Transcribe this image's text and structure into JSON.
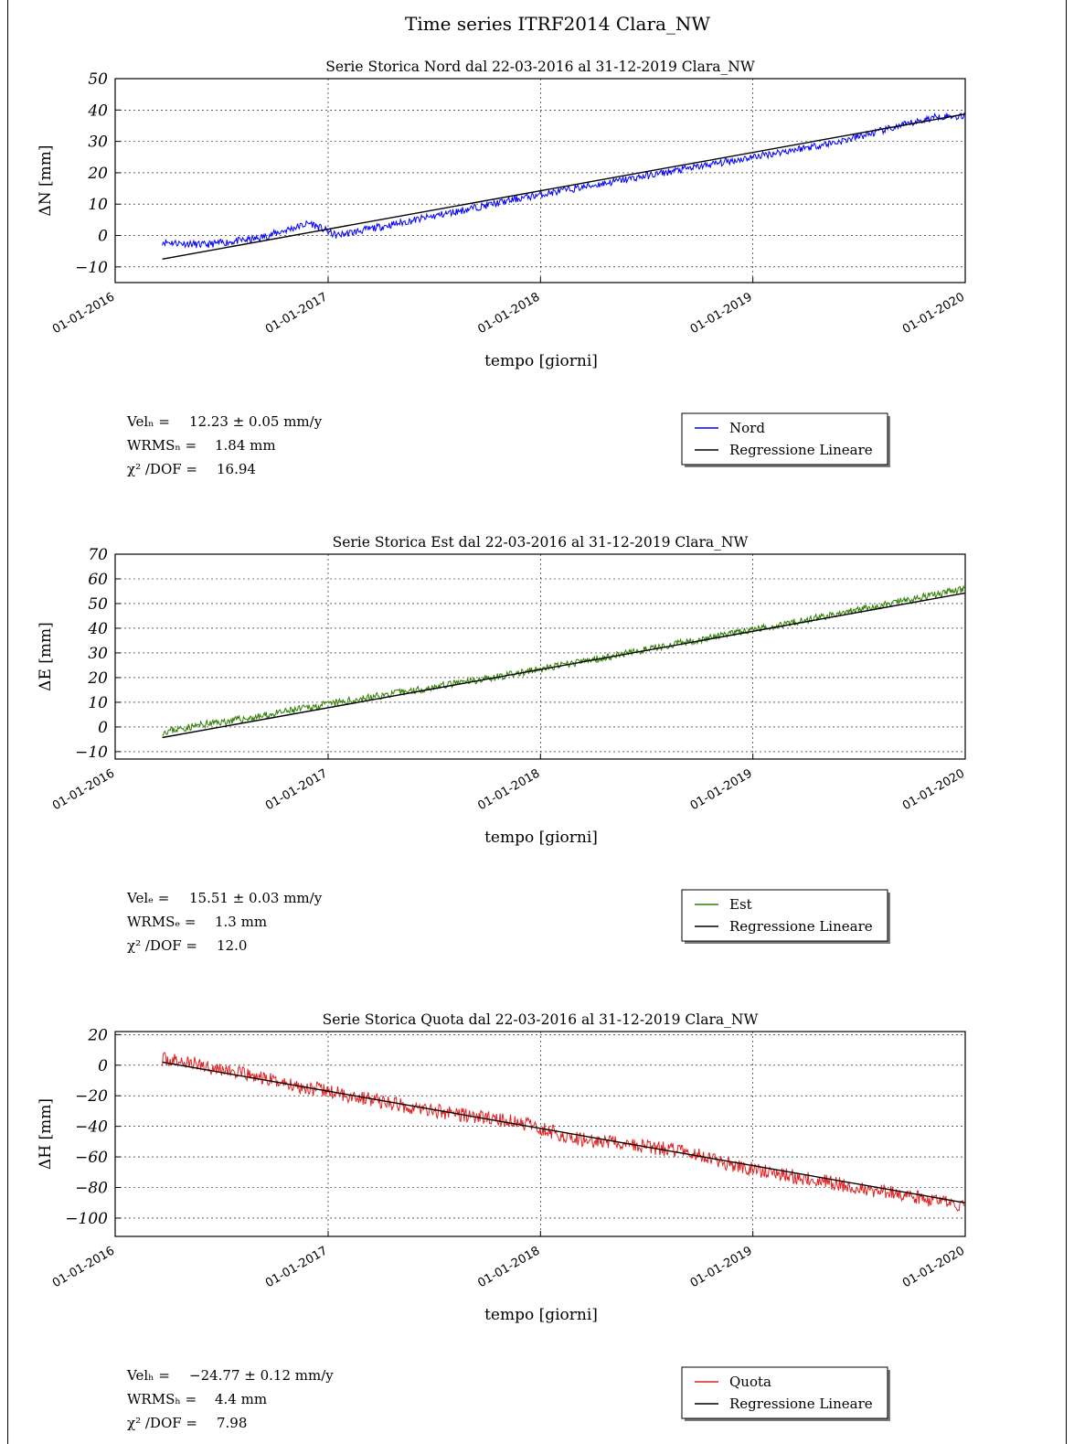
{
  "page": {
    "title": "Time series ITRF2014 Clara_NW"
  },
  "chart_data": [
    {
      "type": "line",
      "title": "Serie Storica Nord dal 22-03-2016 al 31-12-2019 Clara_NW",
      "ylabel": "ΔN  [mm]",
      "xlabel": "tempo [giorni]",
      "x_ticks": [
        "01-01-2016",
        "01-01-2017",
        "01-01-2018",
        "01-01-2019",
        "01-01-2020"
      ],
      "y_ticks": [
        "50",
        "40",
        "30",
        "20",
        "10",
        "0",
        "−10"
      ],
      "ylim": [
        -15,
        50
      ],
      "xlim": [
        "2016-01-01",
        "2020-01-01"
      ],
      "grid": true,
      "legend_position": "right",
      "series": [
        {
          "name": "Nord",
          "color": "#0000ff",
          "x": [
            "2016-03-22",
            "2016-06-01",
            "2016-09-01",
            "2016-12-01",
            "2017-01-15",
            "2017-06-01",
            "2017-12-01",
            "2018-06-01",
            "2018-12-01",
            "2019-06-01",
            "2019-11-15",
            "2019-12-31"
          ],
          "y": [
            -2,
            -3,
            -1,
            4,
            0,
            5,
            12,
            18,
            24,
            30,
            38,
            38
          ]
        },
        {
          "name": "Regressione Lineare",
          "color": "#000000",
          "x": [
            "2016-03-22",
            "2019-12-31"
          ],
          "y": [
            -7.5,
            38.7
          ]
        }
      ],
      "stats": [
        {
          "label": "Velₙ =",
          "value": "12.23 ± 0.05  mm/y"
        },
        {
          "label": "WRMSₙ =",
          "value": "1.84  mm"
        },
        {
          "label": "χ² /DOF  =",
          "value": "16.94"
        }
      ]
    },
    {
      "type": "line",
      "title": "Serie Storica Est dal 22-03-2016 al 31-12-2019 Clara_NW",
      "ylabel": "ΔE  [mm]",
      "xlabel": "tempo [giorni]",
      "x_ticks": [
        "01-01-2016",
        "01-01-2017",
        "01-01-2018",
        "01-01-2019",
        "01-01-2020"
      ],
      "y_ticks": [
        "70",
        "60",
        "50",
        "40",
        "30",
        "20",
        "10",
        "0",
        "−10"
      ],
      "ylim": [
        -13,
        70
      ],
      "xlim": [
        "2016-01-01",
        "2020-01-01"
      ],
      "grid": true,
      "legend_position": "right",
      "series": [
        {
          "name": "Est",
          "color": "#2e7d00",
          "x": [
            "2016-03-22",
            "2016-06-01",
            "2016-09-01",
            "2016-12-01",
            "2017-06-01",
            "2017-12-01",
            "2018-06-01",
            "2018-12-01",
            "2019-06-01",
            "2019-12-31"
          ],
          "y": [
            -2,
            1,
            4,
            8,
            15,
            22,
            30,
            38,
            46,
            56
          ]
        },
        {
          "name": "Regressione Lineare",
          "color": "#000000",
          "x": [
            "2016-03-22",
            "2019-12-31"
          ],
          "y": [
            -4.3,
            54.2
          ]
        }
      ],
      "stats": [
        {
          "label": "Velₑ =",
          "value": "15.51 ± 0.03  mm/y"
        },
        {
          "label": "WRMSₑ =",
          "value": "1.3  mm"
        },
        {
          "label": "χ² /DOF  =",
          "value": "12.0"
        }
      ]
    },
    {
      "type": "line",
      "title": "Serie Storica Quota dal 22-03-2016 al 31-12-2019 Clara_NW",
      "ylabel": "ΔH  [mm]",
      "xlabel": "tempo [giorni]",
      "x_ticks": [
        "01-01-2016",
        "01-01-2017",
        "01-01-2018",
        "01-01-2019",
        "01-01-2020"
      ],
      "y_ticks": [
        "20",
        "0",
        "−20",
        "−40",
        "−60",
        "−80",
        "−100"
      ],
      "ylim": [
        -112,
        22
      ],
      "xlim": [
        "2016-01-01",
        "2020-01-01"
      ],
      "grid": true,
      "legend_position": "right",
      "series": [
        {
          "name": "Quota",
          "color": "#e02020",
          "x": [
            "2016-03-22",
            "2016-06-01",
            "2016-09-01",
            "2016-12-01",
            "2017-06-01",
            "2017-12-01",
            "2018-03-01",
            "2018-06-01",
            "2018-09-01",
            "2018-12-01",
            "2019-06-01",
            "2019-12-31"
          ],
          "y": [
            4,
            0,
            -8,
            -15,
            -28,
            -38,
            -48,
            -52,
            -56,
            -66,
            -78,
            -92
          ]
        },
        {
          "name": "Regressione Lineare",
          "color": "#000000",
          "x": [
            "2016-03-22",
            "2019-12-31"
          ],
          "y": [
            2,
            -90
          ]
        }
      ],
      "stats": [
        {
          "label": "Velₕ =",
          "value": "−24.77 ± 0.12  mm/y"
        },
        {
          "label": "WRMSₕ =",
          "value": "4.4  mm"
        },
        {
          "label": "χ² /DOF  =",
          "value": "7.98"
        }
      ]
    }
  ]
}
